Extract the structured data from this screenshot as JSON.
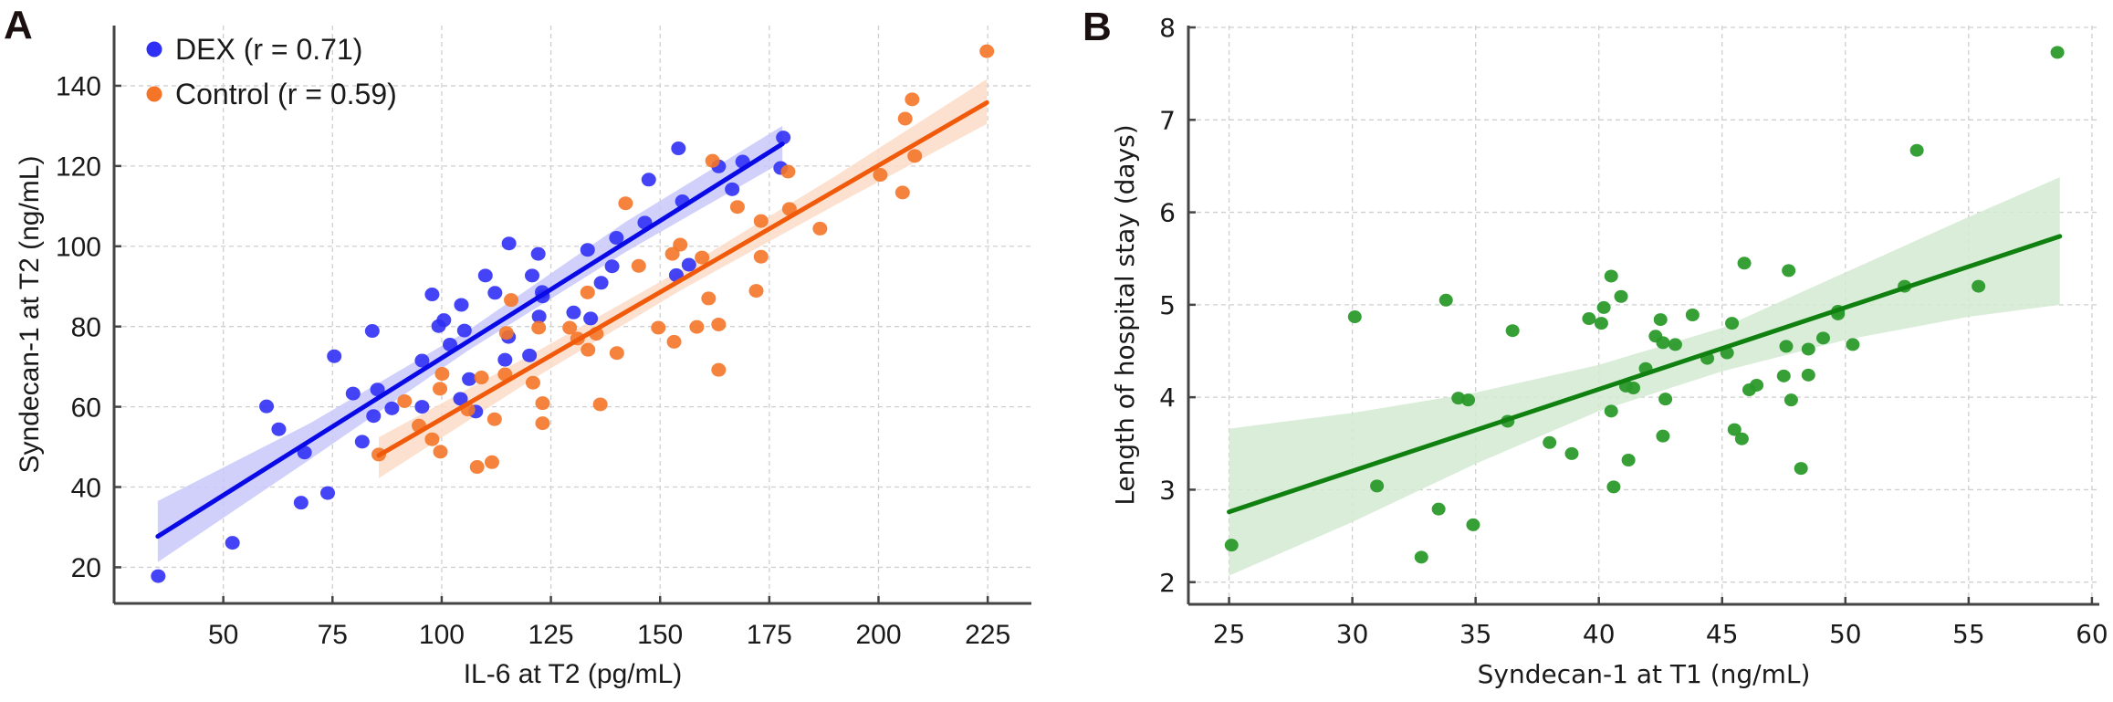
{
  "chart_data": [
    {
      "panel_label": "A",
      "type": "scatter",
      "xlabel": "IL-6 at T2 (pg/mL)",
      "ylabel": "Syndecan-1 at T2 (ng/mL)",
      "xlim": [
        25,
        235
      ],
      "ylim": [
        11,
        155
      ],
      "x_ticks": [
        50,
        75,
        100,
        125,
        150,
        175,
        200,
        225
      ],
      "y_ticks": [
        20,
        40,
        60,
        80,
        100,
        120,
        140
      ],
      "grid": true,
      "legend_position": "top-left",
      "series": [
        {
          "name": "DEX (r = 0.71)",
          "color": "#3030f5",
          "line_color": "#0a0ae6",
          "band_color": "#c8c8fa",
          "points": [
            [
              35.1,
              17.8
            ],
            [
              52.1,
              26.1
            ],
            [
              59.9,
              60.1
            ],
            [
              62.7,
              54.4
            ],
            [
              67.8,
              36.1
            ],
            [
              68.6,
              48.6
            ],
            [
              73.9,
              38.5
            ],
            [
              75.4,
              72.6
            ],
            [
              79.7,
              63.3
            ],
            [
              81.8,
              51.3
            ],
            [
              84.1,
              78.9
            ],
            [
              84.4,
              57.7
            ],
            [
              85.3,
              64.3
            ],
            [
              88.6,
              59.6
            ],
            [
              95.5,
              60.0
            ],
            [
              95.5,
              71.5
            ],
            [
              97.8,
              88.0
            ],
            [
              99.3,
              80.1
            ],
            [
              100.5,
              81.6
            ],
            [
              101.9,
              75.5
            ],
            [
              104.5,
              85.4
            ],
            [
              105.2,
              79.0
            ],
            [
              104.3,
              62.0
            ],
            [
              107.8,
              58.8
            ],
            [
              106.3,
              66.9
            ],
            [
              110.0,
              92.7
            ],
            [
              112.2,
              88.4
            ],
            [
              115.4,
              100.7
            ],
            [
              115.3,
              77.4
            ],
            [
              114.5,
              71.7
            ],
            [
              120.1,
              72.8
            ],
            [
              120.7,
              92.7
            ],
            [
              122.1,
              98.1
            ],
            [
              123.0,
              88.6
            ],
            [
              123.1,
              87.5
            ],
            [
              122.3,
              82.5
            ],
            [
              130.2,
              83.5
            ],
            [
              134.1,
              82.0
            ],
            [
              133.4,
              99.1
            ],
            [
              136.5,
              90.9
            ],
            [
              139.0,
              95.0
            ],
            [
              140.0,
              102.1
            ],
            [
              146.5,
              105.9
            ],
            [
              147.4,
              116.6
            ],
            [
              153.7,
              92.8
            ],
            [
              154.2,
              124.4
            ],
            [
              155.1,
              111.2
            ],
            [
              156.6,
              95.4
            ],
            [
              163.4,
              119.9
            ],
            [
              166.5,
              114.2
            ],
            [
              168.9,
              121.1
            ],
            [
              177.6,
              119.5
            ],
            [
              178.2,
              127.1
            ]
          ],
          "fit": {
            "x": [
              35,
              178
            ],
            "y": [
              27.7,
              125.5
            ]
          },
          "ci": {
            "x": [
              35,
              70,
              106,
              142,
              178
            ],
            "lower": [
              21.3,
              47,
              74,
              98.5,
              121
            ],
            "upper": [
              36.5,
              56,
              79,
              106,
              130
            ]
          }
        },
        {
          "name": "Control (r = 0.59)",
          "color": "#f47528",
          "line_color": "#f05a0a",
          "band_color": "#fbdcc8",
          "points": [
            [
              85.6,
              48.1
            ],
            [
              91.5,
              61.4
            ],
            [
              94.8,
              55.3
            ],
            [
              97.8,
              51.9
            ],
            [
              99.7,
              48.8
            ],
            [
              99.6,
              64.5
            ],
            [
              100.1,
              68.2
            ],
            [
              106.0,
              59.3
            ],
            [
              108.1,
              45.0
            ],
            [
              109.1,
              67.3
            ],
            [
              111.5,
              46.2
            ],
            [
              112.1,
              56.9
            ],
            [
              114.5,
              68.1
            ],
            [
              114.8,
              78.4
            ],
            [
              115.9,
              86.6
            ],
            [
              120.9,
              66.0
            ],
            [
              122.2,
              79.7
            ],
            [
              123.1,
              60.9
            ],
            [
              123.1,
              55.9
            ],
            [
              129.3,
              79.7
            ],
            [
              131.1,
              77.0
            ],
            [
              133.4,
              88.5
            ],
            [
              133.5,
              74.2
            ],
            [
              135.4,
              78.2
            ],
            [
              136.3,
              60.6
            ],
            [
              140.1,
              73.4
            ],
            [
              142.1,
              110.7
            ],
            [
              145.1,
              95.1
            ],
            [
              149.6,
              79.7
            ],
            [
              152.8,
              98.1
            ],
            [
              153.2,
              76.2
            ],
            [
              154.6,
              100.4
            ],
            [
              158.4,
              79.9
            ],
            [
              159.6,
              97.2
            ],
            [
              161.1,
              87.0
            ],
            [
              162.0,
              121.3
            ],
            [
              163.4,
              80.5
            ],
            [
              163.4,
              69.2
            ],
            [
              167.7,
              109.8
            ],
            [
              172.0,
              88.9
            ],
            [
              173.1,
              106.3
            ],
            [
              173.1,
              97.4
            ],
            [
              179.3,
              118.6
            ],
            [
              179.6,
              109.3
            ],
            [
              186.6,
              104.4
            ],
            [
              200.4,
              117.8
            ],
            [
              205.5,
              113.4
            ],
            [
              206.1,
              131.8
            ],
            [
              207.7,
              136.6
            ],
            [
              208.3,
              122.5
            ],
            [
              224.8,
              148.6
            ]
          ],
          "fit": {
            "x": [
              85.6,
              224.8
            ],
            "y": [
              47.9,
              135.8
            ]
          },
          "ci": {
            "x": [
              85.6,
              120,
              155,
              190,
              224.8
            ],
            "lower": [
              42.2,
              66.3,
              89.2,
              110.2,
              130.5
            ],
            "upper": [
              52.4,
              72.7,
              94.2,
              117.4,
              141.7
            ]
          }
        }
      ]
    },
    {
      "panel_label": "B",
      "type": "scatter",
      "xlabel": "Syndecan-1 at T1 (ng/mL)",
      "ylabel": "Length of hospital stay (days)",
      "xlim": [
        23.35,
        60.3
      ],
      "ylim": [
        1.76,
        8.02
      ],
      "x_ticks": [
        25,
        30,
        35,
        40,
        45,
        50,
        55,
        60
      ],
      "y_ticks": [
        2,
        3,
        4,
        5,
        6,
        7,
        8
      ],
      "grid": true,
      "series": [
        {
          "color": "#2b9a2b",
          "line_color": "#108010",
          "band_color": "#d2ead2",
          "points": [
            [
              25.1,
              2.4
            ],
            [
              30.1,
              4.87
            ],
            [
              31.0,
              3.04
            ],
            [
              32.8,
              2.27
            ],
            [
              33.5,
              2.79
            ],
            [
              33.8,
              5.05
            ],
            [
              34.3,
              3.99
            ],
            [
              34.7,
              3.97
            ],
            [
              34.9,
              2.62
            ],
            [
              36.3,
              3.74
            ],
            [
              36.5,
              4.72
            ],
            [
              38.0,
              3.51
            ],
            [
              38.9,
              3.39
            ],
            [
              39.6,
              4.85
            ],
            [
              40.1,
              4.8
            ],
            [
              40.2,
              4.97
            ],
            [
              40.5,
              5.31
            ],
            [
              40.5,
              3.85
            ],
            [
              40.6,
              3.03
            ],
            [
              40.9,
              5.09
            ],
            [
              41.1,
              4.12
            ],
            [
              41.2,
              3.32
            ],
            [
              41.4,
              4.1
            ],
            [
              41.9,
              4.31
            ],
            [
              42.3,
              4.66
            ],
            [
              42.5,
              4.84
            ],
            [
              42.6,
              4.59
            ],
            [
              42.6,
              3.58
            ],
            [
              42.7,
              3.98
            ],
            [
              43.1,
              4.57
            ],
            [
              43.8,
              4.89
            ],
            [
              44.4,
              4.42
            ],
            [
              45.2,
              4.48
            ],
            [
              45.4,
              4.8
            ],
            [
              45.5,
              3.65
            ],
            [
              45.8,
              3.55
            ],
            [
              45.9,
              5.45
            ],
            [
              46.1,
              4.08
            ],
            [
              46.4,
              4.13
            ],
            [
              47.5,
              4.23
            ],
            [
              47.6,
              4.55
            ],
            [
              47.7,
              5.37
            ],
            [
              47.8,
              3.97
            ],
            [
              48.2,
              3.23
            ],
            [
              48.5,
              4.52
            ],
            [
              48.5,
              4.24
            ],
            [
              49.1,
              4.64
            ],
            [
              49.7,
              4.9
            ],
            [
              49.7,
              4.93
            ],
            [
              50.3,
              4.57
            ],
            [
              52.4,
              5.2
            ],
            [
              52.9,
              6.67
            ],
            [
              55.4,
              5.2
            ],
            [
              58.6,
              7.73
            ]
          ],
          "fit": {
            "x": [
              25,
              58.7
            ],
            "y": [
              2.76,
              5.74
            ]
          },
          "ci": {
            "x": [
              25,
              30,
              35,
              40,
              45,
              50,
              55,
              58.7
            ],
            "lower": [
              2.07,
              2.65,
              3.28,
              3.85,
              4.28,
              4.62,
              4.87,
              5.0
            ],
            "upper": [
              3.66,
              3.83,
              4.05,
              4.35,
              4.75,
              5.35,
              5.95,
              6.38
            ]
          }
        }
      ]
    }
  ]
}
